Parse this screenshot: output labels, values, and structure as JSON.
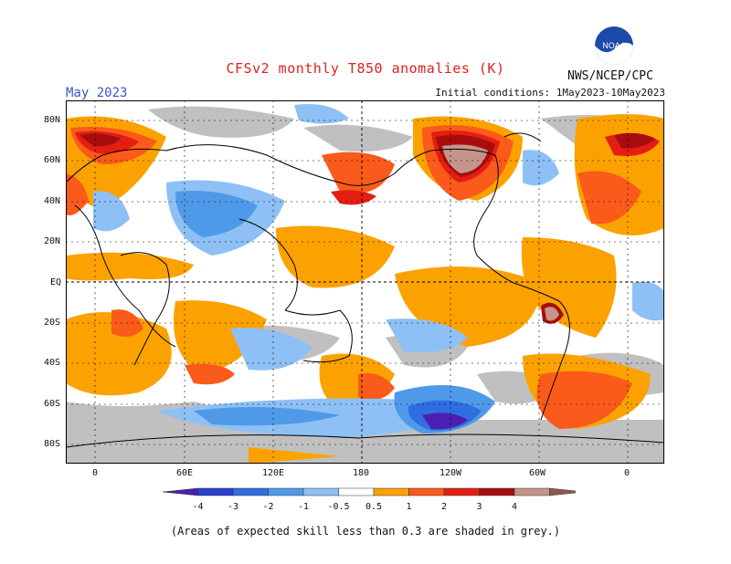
{
  "title": "CFSv2 monthly T850 anomalies (K)",
  "valid_month": "May 2023",
  "initial_conditions": "Initial conditions: 1May2023-10May2023",
  "agency": "NWS/NCEP/CPC",
  "logo_text": "NOAA",
  "footnote": "(Areas of expected skill less than 0.3 are shaded in grey.)",
  "lat_labels": [
    "80N",
    "60N",
    "40N",
    "20N",
    "EQ",
    "20S",
    "40S",
    "60S",
    "80S"
  ],
  "lon_labels": [
    "0",
    "60E",
    "120E",
    "180",
    "120W",
    "60W",
    "0"
  ],
  "legend": {
    "bins": [
      {
        "label": "-4",
        "color": "#4b1fb0"
      },
      {
        "label": "-3",
        "color": "#2a3fcf"
      },
      {
        "label": "-2",
        "color": "#2f6ee0"
      },
      {
        "label": "-1",
        "color": "#4f9ae8"
      },
      {
        "label": "-0.5",
        "color": "#8ec0f5"
      },
      {
        "label": "0.5",
        "color": "#ffffff"
      },
      {
        "label": "1",
        "color": "#fca200"
      },
      {
        "label": "2",
        "color": "#fa5a1a"
      },
      {
        "label": "3",
        "color": "#e41e12"
      },
      {
        "label": "4",
        "color": "#a80d0d"
      },
      {
        "label": "",
        "color": "#c5958a"
      },
      {
        "label": "",
        "color": "#8b5a4a"
      }
    ]
  },
  "colors": {
    "skill_grey": "#c0c0c0",
    "ocean": "#ffffff",
    "coast": "#000000"
  }
}
